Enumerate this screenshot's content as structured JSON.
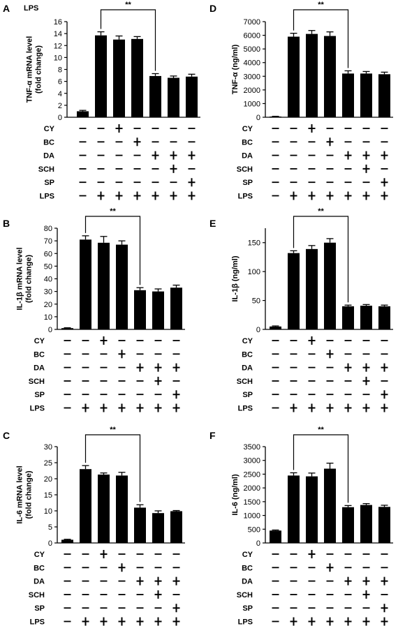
{
  "figure": {
    "corner_label": "LPS"
  },
  "treatment_rows": [
    {
      "label": "CY",
      "marks": [
        "-",
        "-",
        "+",
        "-",
        "-",
        "-",
        "-"
      ]
    },
    {
      "label": "BC",
      "marks": [
        "-",
        "-",
        "-",
        "+",
        "-",
        "-",
        "-"
      ]
    },
    {
      "label": "DA",
      "marks": [
        "-",
        "-",
        "-",
        "-",
        "+",
        "+",
        "+"
      ]
    },
    {
      "label": "SCH",
      "marks": [
        "-",
        "-",
        "-",
        "-",
        "-",
        "+",
        "-"
      ]
    },
    {
      "label": "SP",
      "marks": [
        "-",
        "-",
        "-",
        "-",
        "-",
        "-",
        "+"
      ]
    },
    {
      "label": "LPS",
      "marks": [
        "-",
        "+",
        "+",
        "+",
        "+",
        "+",
        "+"
      ]
    }
  ],
  "chart_data": [
    {
      "type": "bar",
      "panel": "A",
      "ylabel": "TNF-α mRNA level (fold change)",
      "categories": [
        "1",
        "2",
        "3",
        "4",
        "5",
        "6",
        "7"
      ],
      "values": [
        1.0,
        13.7,
        13.0,
        13.1,
        6.9,
        6.6,
        6.8
      ],
      "errors": [
        0.15,
        0.6,
        0.6,
        0.4,
        0.4,
        0.3,
        0.4
      ],
      "ylim": [
        0,
        16
      ],
      "yticks": [
        0,
        2,
        4,
        6,
        8,
        10,
        12,
        14,
        16
      ],
      "significance": {
        "label": "**",
        "from": 1,
        "to": 4
      }
    },
    {
      "type": "bar",
      "panel": "D",
      "ylabel": "TNF-α (ng/ml)",
      "categories": [
        "1",
        "2",
        "3",
        "4",
        "5",
        "6",
        "7"
      ],
      "values": [
        50,
        5900,
        6100,
        5950,
        3200,
        3200,
        3150
      ],
      "errors": [
        20,
        250,
        250,
        300,
        200,
        150,
        150
      ],
      "ylim": [
        0,
        7000
      ],
      "yticks": [
        0,
        1000,
        2000,
        3000,
        4000,
        5000,
        6000,
        7000
      ],
      "significance": {
        "label": "**",
        "from": 1,
        "to": 4
      }
    },
    {
      "type": "bar",
      "panel": "B",
      "ylabel": "IL-1β mRNA level (fold change)",
      "categories": [
        "1",
        "2",
        "3",
        "4",
        "5",
        "6",
        "7"
      ],
      "values": [
        1,
        71,
        68.5,
        67,
        31,
        30,
        33
      ],
      "errors": [
        0.3,
        3,
        5,
        3,
        2,
        2,
        2
      ],
      "ylim": [
        0,
        80
      ],
      "yticks": [
        0,
        10,
        20,
        30,
        40,
        50,
        60,
        70,
        80
      ],
      "significance": {
        "label": "**",
        "from": 1,
        "to": 4
      }
    },
    {
      "type": "bar",
      "panel": "E",
      "ylabel": "IL-1β (ng/ml)",
      "categories": [
        "1",
        "2",
        "3",
        "4",
        "5",
        "6",
        "7"
      ],
      "values": [
        5,
        132,
        139,
        150,
        40,
        41,
        40
      ],
      "errors": [
        1,
        4,
        6,
        7,
        2,
        2,
        2
      ],
      "ylim": [
        0,
        175
      ],
      "yticks": [
        0,
        50,
        100,
        150
      ],
      "significance": {
        "label": "**",
        "from": 1,
        "to": 4
      }
    },
    {
      "type": "bar",
      "panel": "C",
      "ylabel": "IL-6 mRNA level (fold change)",
      "categories": [
        "1",
        "2",
        "3",
        "4",
        "5",
        "6",
        "7"
      ],
      "values": [
        1,
        23,
        21.3,
        21,
        11,
        9.3,
        9.9
      ],
      "errors": [
        0.15,
        1.1,
        0.5,
        1.0,
        0.9,
        0.7,
        0.2
      ],
      "ylim": [
        0,
        30
      ],
      "yticks": [
        0,
        5,
        10,
        15,
        20,
        25,
        30
      ],
      "significance": {
        "label": "**",
        "from": 1,
        "to": 4
      }
    },
    {
      "type": "bar",
      "panel": "F",
      "ylabel": "IL-6 (ng/ml)",
      "categories": [
        "1",
        "2",
        "3",
        "4",
        "5",
        "6",
        "7"
      ],
      "values": [
        450,
        2450,
        2420,
        2700,
        1300,
        1380,
        1310
      ],
      "errors": [
        20,
        100,
        120,
        200,
        60,
        50,
        60
      ],
      "ylim": [
        0,
        3500
      ],
      "yticks": [
        0,
        500,
        1000,
        1500,
        2000,
        2500,
        3000,
        3500
      ],
      "significance": {
        "label": "**",
        "from": 1,
        "to": 4
      }
    }
  ]
}
